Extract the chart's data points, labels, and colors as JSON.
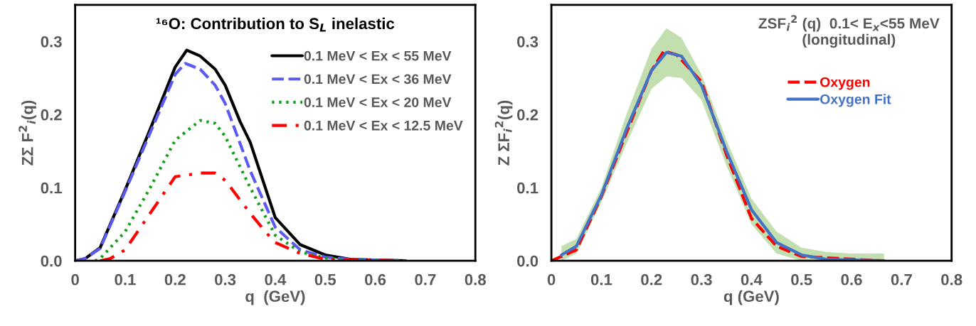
{
  "chart_data": [
    {
      "type": "line",
      "title": "¹⁶O: Contribution to S$_{L}$ inelastic",
      "xlabel": "q  (GeV)",
      "ylabel": "ZΣ F$^{2}$$_{i}$(q)",
      "xlim": [
        0,
        0.8
      ],
      "ylim": [
        0,
        0.35
      ],
      "xticks": [
        {
          "value": 0,
          "label": "0"
        },
        0.1,
        0.2,
        0.3,
        0.4,
        0.5,
        0.6,
        0.7,
        0.8
      ],
      "yticks": [
        {
          "value": 0,
          "label": "0.0"
        },
        0.1,
        0.2,
        0.3
      ],
      "legend": "top right",
      "grid": false,
      "series": [
        {
          "name": "0.1 MeV < Ex < 55 MeV",
          "color": "#000000",
          "line_style": "solid",
          "x": [
            0,
            0.02,
            0.05,
            0.1,
            0.15,
            0.2,
            0.223,
            0.25,
            0.28,
            0.3,
            0.33,
            0.35,
            0.4,
            0.45,
            0.5,
            0.55,
            0.6,
            0.66
          ],
          "values": [
            0,
            0.003,
            0.018,
            0.097,
            0.18,
            0.265,
            0.288,
            0.28,
            0.262,
            0.24,
            0.19,
            0.162,
            0.059,
            0.022,
            0.008,
            0.002,
            0.001,
            0
          ]
        },
        {
          "name": "0.1 MeV < Ex < 36 MeV",
          "color": "#5b5bf0",
          "line_style": "dashed",
          "x": [
            0,
            0.02,
            0.05,
            0.1,
            0.15,
            0.2,
            0.22,
            0.25,
            0.28,
            0.3,
            0.33,
            0.35,
            0.4,
            0.45,
            0.5,
            0.55,
            0.6,
            0.66
          ],
          "values": [
            0,
            0.003,
            0.017,
            0.095,
            0.175,
            0.255,
            0.27,
            0.262,
            0.24,
            0.215,
            0.16,
            0.123,
            0.046,
            0.015,
            0.005,
            0.002,
            0.001,
            0
          ]
        },
        {
          "name": "0.1 MeV < Ex < 20 MeV",
          "color": "#14a014",
          "line_style": "dotted",
          "x": [
            0.04,
            0.05,
            0.1,
            0.15,
            0.2,
            0.25,
            0.28,
            0.3,
            0.35,
            0.4,
            0.45,
            0.5,
            0.55,
            0.6,
            0.66
          ],
          "values": [
            0,
            0.003,
            0.04,
            0.1,
            0.165,
            0.192,
            0.188,
            0.17,
            0.1,
            0.035,
            0.012,
            0.004,
            0.001,
            0.001,
            0
          ]
        },
        {
          "name": "0.1 MeV < Ex < 12.5 MeV",
          "color": "#ff0000",
          "line_style": "dashdot",
          "x": [
            0.05,
            0.07,
            0.1,
            0.15,
            0.2,
            0.25,
            0.28,
            0.3,
            0.35,
            0.38,
            0.4,
            0.45,
            0.5,
            0.55,
            0.6,
            0.66
          ],
          "values": [
            0,
            0.003,
            0.015,
            0.065,
            0.115,
            0.12,
            0.12,
            0.11,
            0.065,
            0.04,
            0.025,
            0.01,
            0.002,
            0.001,
            0.001,
            0
          ]
        }
      ]
    },
    {
      "type": "line",
      "title": "ZSF$_{i}$$^{2}$ (q)  0.1< E$_{x}$<55 MeV\n(longitudinal)",
      "xlabel": "q (GeV)",
      "ylabel": "Z ΣF$_{i}$$^{2}$(q)",
      "xlim": [
        0,
        0.8
      ],
      "ylim": [
        0,
        0.35
      ],
      "xticks": [
        {
          "value": 0,
          "label": "0"
        },
        0.1,
        0.2,
        0.3,
        0.4,
        0.5,
        0.6,
        0.7,
        0.8
      ],
      "yticks": [
        {
          "value": 0,
          "label": "0.0"
        },
        0.1,
        0.2,
        0.3
      ],
      "legend": "right",
      "grid": false,
      "series": [
        {
          "name": "Oxygen",
          "color": "#ff0000",
          "line_style": "dashed",
          "x": [
            0,
            0.05,
            0.1,
            0.15,
            0.2,
            0.225,
            0.25,
            0.3,
            0.35,
            0.4,
            0.45,
            0.5,
            0.55,
            0.6,
            0.66
          ],
          "values": [
            0,
            0.015,
            0.088,
            0.175,
            0.26,
            0.287,
            0.282,
            0.245,
            0.145,
            0.058,
            0.02,
            0.006,
            null,
            null,
            0
          ]
        },
        {
          "name": "Oxygen Fit",
          "color": "#4472c4",
          "line_style": "solid",
          "x": [
            0.02,
            0.05,
            0.1,
            0.15,
            0.2,
            0.23,
            0.26,
            0.3,
            0.35,
            0.4,
            0.45,
            0.5,
            0.55,
            0.6,
            0.665
          ],
          "values": [
            0.008,
            0.02,
            0.09,
            0.18,
            0.26,
            0.285,
            0.28,
            0.24,
            0.15,
            0.07,
            0.025,
            0.008,
            0.002,
            0.001,
            0
          ],
          "lower": [
            0,
            0.01,
            0.08,
            0.16,
            0.235,
            0.252,
            0.25,
            0.22,
            0.13,
            0.05,
            0.01,
            0,
            0,
            0,
            0
          ],
          "upper": [
            0.02,
            0.03,
            0.1,
            0.2,
            0.29,
            0.318,
            0.305,
            0.255,
            0.165,
            0.085,
            0.04,
            0.018,
            0.012,
            0.01,
            0.01
          ]
        }
      ]
    }
  ]
}
